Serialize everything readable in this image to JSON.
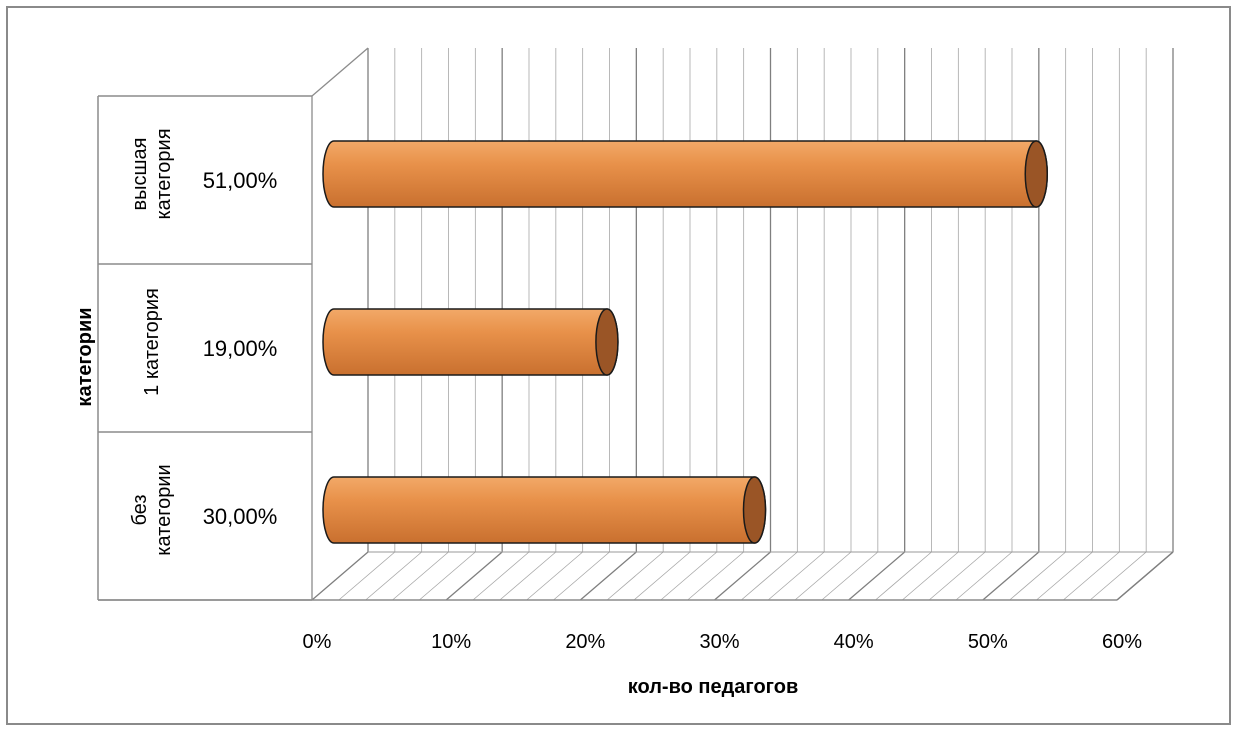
{
  "chart_data": {
    "type": "bar",
    "orientation": "horizontal",
    "style": "3d-cylinder",
    "categories": [
      {
        "lines": [
          "без",
          "категории"
        ],
        "value": 30,
        "label": "30,00%"
      },
      {
        "lines": [
          "1 категория"
        ],
        "value": 19,
        "label": "19,00%"
      },
      {
        "lines": [
          "высшая",
          "категория"
        ],
        "value": 51,
        "label": "51,00%"
      }
    ],
    "xlim": [
      0,
      60
    ],
    "x_ticks": [
      {
        "value": 0,
        "label": "0%"
      },
      {
        "value": 10,
        "label": "10%"
      },
      {
        "value": 20,
        "label": "20%"
      },
      {
        "value": 30,
        "label": "30%"
      },
      {
        "value": 40,
        "label": "40%"
      },
      {
        "value": 50,
        "label": "50%"
      },
      {
        "value": 60,
        "label": "60%"
      }
    ],
    "minor_grid_step": 2,
    "xlabel": "кол-во педагогов",
    "ylabel": "категории",
    "grid": true,
    "legend": "none",
    "colors": {
      "bar_body": "#e8914a",
      "bar_body_light": "#f2a968",
      "bar_body_dark": "#c9702f",
      "bar_cap": "#9a5526",
      "gridline": "#a6a6a6",
      "axis": "#8c8c8c"
    }
  }
}
